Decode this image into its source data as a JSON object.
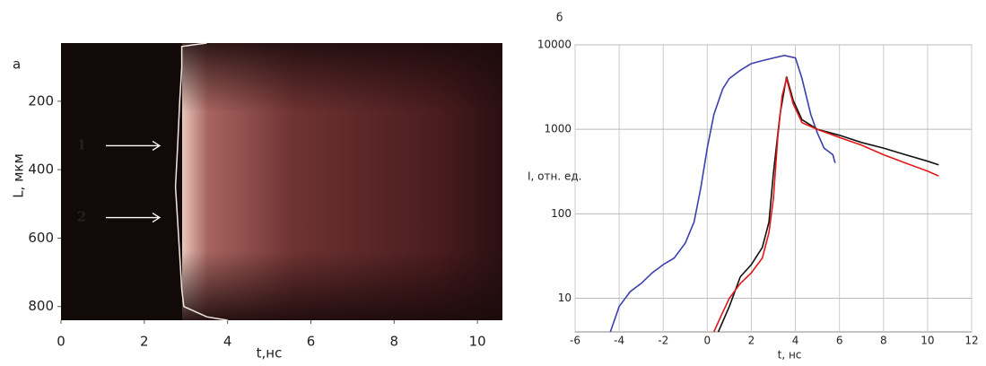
{
  "chart_data": [
    {
      "type": "heatmap",
      "panel": "а",
      "xlabel": "t,нс",
      "ylabel": "L, мкм",
      "xlim": [
        0,
        10.6
      ],
      "xticks": [
        0,
        2,
        4,
        6,
        8,
        10
      ],
      "ylim": [
        840,
        30
      ],
      "yticks": [
        200,
        400,
        600,
        800
      ],
      "profile": {
        "color": "#f0e8e0",
        "x": [
          3.5,
          2.9,
          2.9,
          2.85,
          2.8,
          2.75,
          2.8,
          2.85,
          2.9,
          2.95,
          3.5,
          4
        ],
        "y": [
          30,
          40,
          100,
          200,
          330,
          450,
          550,
          650,
          750,
          800,
          830,
          840
        ]
      },
      "annotations": [
        {
          "text": "1",
          "y": 330
        },
        {
          "text": "2",
          "y": 540
        }
      ]
    },
    {
      "type": "line",
      "panel": "б",
      "xlabel": "t, нс",
      "ylabel": "I, отн. ед.",
      "xlim": [
        -6,
        12
      ],
      "xticks": [
        -6,
        -4,
        -2,
        0,
        2,
        4,
        6,
        8,
        10,
        12
      ],
      "ylim": [
        4,
        10000
      ],
      "yticks": [
        10,
        100,
        1000,
        10000
      ],
      "log_y": true,
      "grid": true,
      "series": [
        {
          "color": "#3b3fb0",
          "x": [
            -4.4,
            -4,
            -3.5,
            -3,
            -2.5,
            -2,
            -1.5,
            -1,
            -0.6,
            -0.3,
            0,
            0.3,
            0.7,
            1,
            1.5,
            2,
            2.5,
            3,
            3.5,
            4,
            4.3,
            4.7,
            5,
            5.3,
            5.7,
            5.8
          ],
          "values": [
            4,
            8,
            12,
            15,
            20,
            25,
            30,
            45,
            80,
            200,
            600,
            1500,
            3000,
            4000,
            5000,
            6000,
            6500,
            7000,
            7500,
            7000,
            4000,
            1500,
            900,
            600,
            500,
            400
          ]
        },
        {
          "color": "#111111",
          "x": [
            0.5,
            1,
            1.5,
            2,
            2.5,
            2.8,
            3,
            3.3,
            3.6,
            3.9,
            4.3,
            5,
            6,
            7,
            8,
            9,
            10,
            10.5
          ],
          "values": [
            4,
            8,
            18,
            25,
            40,
            80,
            300,
            1500,
            4200,
            2200,
            1300,
            1000,
            850,
            700,
            600,
            500,
            420,
            380
          ]
        },
        {
          "color": "#e01818",
          "x": [
            0.3,
            0.6,
            1,
            1.5,
            2,
            2.5,
            2.8,
            3,
            3.2,
            3.4,
            3.6,
            3.9,
            4.3,
            5,
            6,
            7,
            8,
            9,
            10,
            10.5
          ],
          "values": [
            4,
            6,
            10,
            15,
            20,
            30,
            60,
            150,
            800,
            2500,
            4000,
            2000,
            1200,
            1000,
            800,
            650,
            500,
            400,
            320,
            280
          ]
        }
      ]
    }
  ]
}
